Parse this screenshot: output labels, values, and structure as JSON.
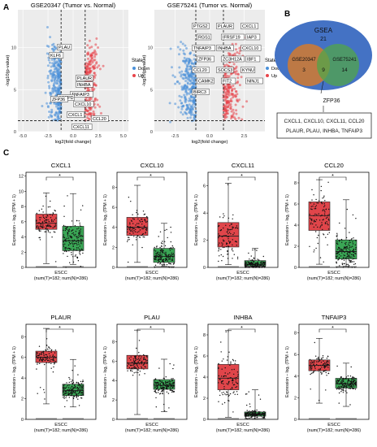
{
  "panel_labels": [
    "A",
    "B",
    "C"
  ],
  "volcano": {
    "ylabel": "-log10(p-value)",
    "xlabel": "log2(fold change)",
    "legend_title": "State",
    "legend_down": "Down",
    "legend_up": "Up",
    "colors": {
      "down": "#4a90d9",
      "up": "#e8444a"
    },
    "plots": [
      {
        "title": "GSE20347 (Tumor vs. Normal)",
        "xticks": [
          "-5.0",
          "-2.5",
          "0.0",
          "2.5",
          "5.0"
        ],
        "yticks": [
          "0",
          "5",
          "10"
        ],
        "labels": [
          "PLAU",
          "KLF6",
          "PLAUR",
          "INHBA",
          "TNFAIP3",
          "CEBPD",
          "CXCL10",
          "CXCL1",
          "ZFP36",
          "CXCL11",
          "CCL20"
        ]
      },
      {
        "title": "GSE75241 (Tumor vs. Normal)",
        "xticks": [
          "-2.5",
          "0.0",
          "2.5"
        ],
        "yticks": [
          "0",
          "5",
          "10"
        ],
        "labels": [
          "PTGS2",
          "PLAUR",
          "CXCL1",
          "RGS1",
          "IFRSF19",
          "IAP3",
          "TNFAIP3",
          "INHBA",
          "CXCL10",
          "ZFP36",
          "ZC3H12A",
          "IBF1",
          "CCL20",
          "SOCS3",
          "KYNU",
          "CAMK2",
          "FIT2",
          "NINJ1",
          "BIRC3"
        ]
      }
    ]
  },
  "venn": {
    "outer_label": "GSEA",
    "outer_count": "21",
    "set1": "GSE20347",
    "set1_count": "3",
    "set2": "GSE75241",
    "set2_count": "14",
    "overlap_count": "9",
    "callout": "ZFP36",
    "box_line1": "CXCL1, CXCL10, CXCL11, CCL20",
    "box_line2": "PLAUR, PLAU, INHBA, TNFAIP3"
  },
  "boxplot_common": {
    "ylabel": "Expression – log₂ (TPM + 1)",
    "xlabel": "ESCC",
    "n_label": "(num(T)=182; num(N)=286)",
    "signif": "*",
    "colors": {
      "tumor": "#e0454a",
      "normal": "#3aa655"
    }
  },
  "chart_data": [
    {
      "type": "box",
      "title": "CXCL1",
      "yticks": [
        0,
        2,
        4,
        6,
        8,
        10,
        12
      ],
      "ylim": [
        0,
        12.5
      ],
      "tumor": {
        "q1": 5,
        "median": 5.8,
        "q3": 7,
        "lo": 0.5,
        "hi": 9.8
      },
      "normal": {
        "q1": 2.2,
        "median": 3.5,
        "q3": 5.4,
        "lo": 0.4,
        "hi": 9.7
      }
    },
    {
      "type": "box",
      "title": "CXCL10",
      "yticks": [
        0,
        2,
        4,
        6,
        8
      ],
      "ylim": [
        0,
        9.5
      ],
      "tumor": {
        "q1": 3.2,
        "median": 4,
        "q3": 5,
        "lo": 0.5,
        "hi": 8.2
      },
      "normal": {
        "q1": 0.5,
        "median": 1.1,
        "q3": 1.9,
        "lo": 0.1,
        "hi": 4.4
      }
    },
    {
      "type": "box",
      "title": "CXCL11",
      "yticks": [
        0,
        2,
        4,
        6
      ],
      "ylim": [
        0,
        7
      ],
      "tumor": {
        "q1": 1.5,
        "median": 2.3,
        "q3": 3.3,
        "lo": 0.2,
        "hi": 6.2
      },
      "normal": {
        "q1": 0.1,
        "median": 0.2,
        "q3": 0.5,
        "lo": 0,
        "hi": 1.4
      }
    },
    {
      "type": "box",
      "title": "CCL20",
      "yticks": [
        0,
        2,
        4,
        6,
        8
      ],
      "ylim": [
        0,
        9
      ],
      "tumor": {
        "q1": 3.5,
        "median": 4.9,
        "q3": 6.2,
        "lo": 0.3,
        "hi": 8.3
      },
      "normal": {
        "q1": 0.8,
        "median": 1.5,
        "q3": 2.6,
        "lo": 0.1,
        "hi": 6.4
      }
    },
    {
      "type": "box",
      "title": "PLAUR",
      "yticks": [
        0,
        2,
        4,
        6,
        8
      ],
      "ylim": [
        0,
        9.2
      ],
      "tumor": {
        "q1": 5.5,
        "median": 6,
        "q3": 6.6,
        "lo": 1.5,
        "hi": 8.8
      },
      "normal": {
        "q1": 2.3,
        "median": 2.8,
        "q3": 3.4,
        "lo": 1.2,
        "hi": 5.8
      }
    },
    {
      "type": "box",
      "title": "PLAU",
      "yticks": [
        0,
        2,
        4,
        6,
        8
      ],
      "ylim": [
        0,
        9.8
      ],
      "tumor": {
        "q1": 5.2,
        "median": 5.8,
        "q3": 6.6,
        "lo": 0.5,
        "hi": 9.2
      },
      "normal": {
        "q1": 3.1,
        "median": 3.5,
        "q3": 4.1,
        "lo": 0.8,
        "hi": 6.2
      }
    },
    {
      "type": "box",
      "title": "INHBA",
      "yticks": [
        0,
        2,
        4,
        6,
        8
      ],
      "ylim": [
        0,
        9
      ],
      "tumor": {
        "q1": 2.8,
        "median": 3.9,
        "q3": 5.2,
        "lo": 0.2,
        "hi": 8.4
      },
      "normal": {
        "q1": 0.3,
        "median": 0.5,
        "q3": 0.7,
        "lo": 0,
        "hi": 2.8
      }
    },
    {
      "type": "box",
      "title": "TNFAIP3",
      "yticks": [
        0,
        2,
        4,
        6,
        8
      ],
      "ylim": [
        0,
        8.8
      ],
      "tumor": {
        "q1": 4.5,
        "median": 5,
        "q3": 5.5,
        "lo": 1.5,
        "hi": 7.5
      },
      "normal": {
        "q1": 2.9,
        "median": 3.3,
        "q3": 3.8,
        "lo": 1.2,
        "hi": 5.2
      }
    }
  ]
}
